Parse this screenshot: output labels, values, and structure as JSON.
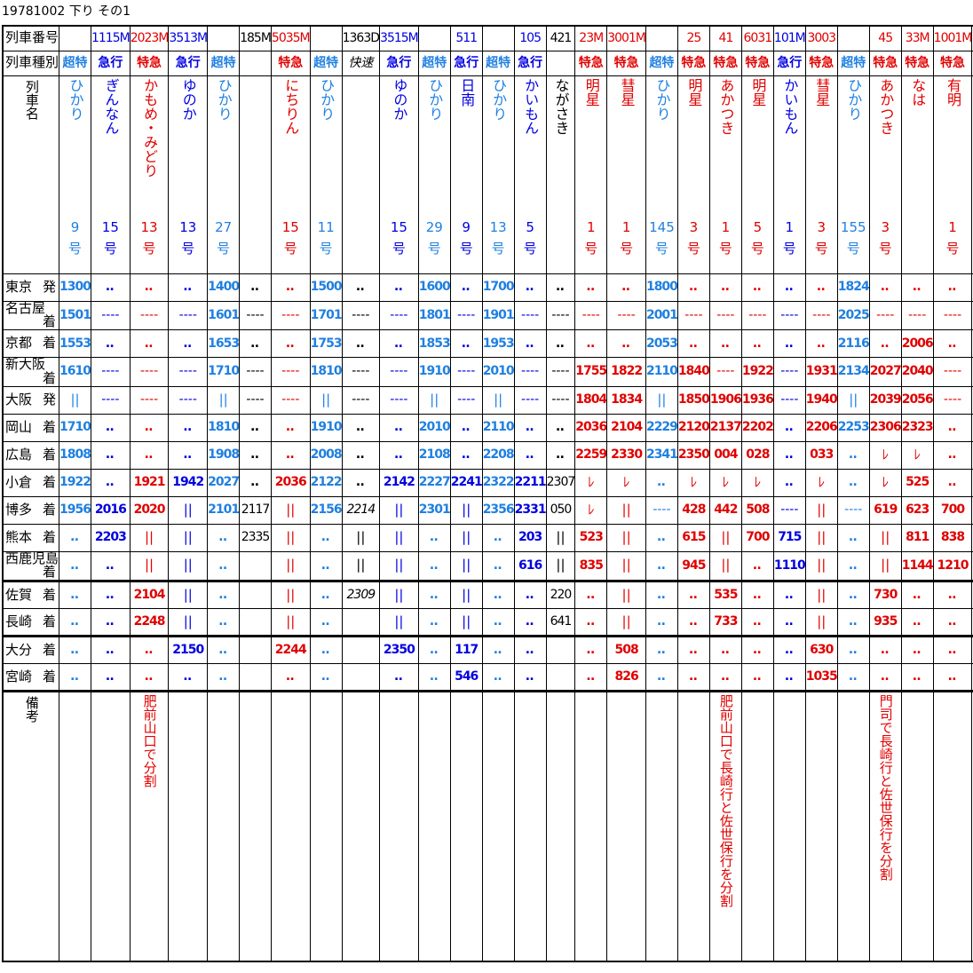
{
  "caption": "19781002 下り その1",
  "header_labels": {
    "train_number": "列車番号",
    "train_type": "列車種別",
    "train_name": "列車名",
    "remarks": "備考"
  },
  "trains": [
    {
      "num": "",
      "type": "超特",
      "name": "ひかり",
      "gou": "9",
      "c": "L"
    },
    {
      "num": "1115M",
      "type": "急行",
      "name": "ぎんなん",
      "gou": "15",
      "c": "B"
    },
    {
      "num": "2023M",
      "type": "特急",
      "name": "かもめ・みどり",
      "gou": "13",
      "c": "R"
    },
    {
      "num": "3513M",
      "type": "急行",
      "name": "ゆのか",
      "gou": "13",
      "c": "B"
    },
    {
      "num": "",
      "type": "超特",
      "name": "ひかり",
      "gou": "27",
      "c": "L"
    },
    {
      "num": "185M",
      "type": "",
      "name": "",
      "gou": "",
      "c": "K"
    },
    {
      "num": "5035M",
      "type": "特急",
      "name": "にちりん",
      "gou": "15",
      "c": "R"
    },
    {
      "num": "",
      "type": "超特",
      "name": "ひかり",
      "gou": "11",
      "c": "L"
    },
    {
      "num": "1363D",
      "type": "快速",
      "name": "",
      "gou": "",
      "c": "K"
    },
    {
      "num": "3515M",
      "type": "急行",
      "name": "ゆのか",
      "gou": "15",
      "c": "B"
    },
    {
      "num": "",
      "type": "超特",
      "name": "ひかり",
      "gou": "29",
      "c": "L"
    },
    {
      "num": "511",
      "type": "急行",
      "name": "日南",
      "gou": "9",
      "c": "B"
    },
    {
      "num": "",
      "type": "超特",
      "name": "ひかり",
      "gou": "13",
      "c": "L"
    },
    {
      "num": "105",
      "type": "急行",
      "name": "かいもん",
      "gou": "5",
      "c": "B"
    },
    {
      "num": "421",
      "type": "",
      "name": "ながさき",
      "gou": "",
      "c": "K"
    },
    {
      "num": "23M",
      "type": "特急",
      "name": "明星",
      "gou": "1",
      "c": "R"
    },
    {
      "num": "3001M",
      "type": "特急",
      "name": "彗星",
      "gou": "1",
      "c": "R"
    },
    {
      "num": "",
      "type": "超特",
      "name": "ひかり",
      "gou": "145",
      "c": "L"
    },
    {
      "num": "25",
      "type": "特急",
      "name": "明星",
      "gou": "3",
      "c": "R"
    },
    {
      "num": "41",
      "type": "特急",
      "name": "あかつき",
      "gou": "1",
      "c": "R"
    },
    {
      "num": "6031",
      "type": "特急",
      "name": "明星",
      "gou": "5",
      "c": "R"
    },
    {
      "num": "101M",
      "type": "急行",
      "name": "かいもん",
      "gou": "1",
      "c": "B"
    },
    {
      "num": "3003",
      "type": "特急",
      "name": "彗星",
      "gou": "3",
      "c": "R"
    },
    {
      "num": "",
      "type": "超特",
      "name": "ひかり",
      "gou": "155",
      "c": "L"
    },
    {
      "num": "45",
      "type": "特急",
      "name": "あかつき",
      "gou": "3",
      "c": "R"
    },
    {
      "num": "33M",
      "type": "特急",
      "name": "なは",
      "gou": "",
      "c": "R"
    },
    {
      "num": "1001M",
      "type": "特急",
      "name": "有明",
      "gou": "1",
      "c": "R"
    },
    {
      "num": "",
      "type": "",
      "name": "",
      "gou": "",
      "c": "K"
    }
  ],
  "gou_suffix": "号",
  "stations": [
    {
      "name": "東京",
      "kind": "発",
      "sep": false,
      "times": [
        "1300",
        "‥",
        "‥",
        "‥",
        "1400",
        "‥",
        "‥",
        "1500",
        "‥",
        "‥",
        "1600",
        "‥",
        "1700",
        "‥",
        "‥",
        "‥",
        "‥",
        "1800",
        "‥",
        "‥",
        "‥",
        "‥",
        "‥",
        "1824",
        "‥",
        "‥",
        "‥",
        "‥"
      ]
    },
    {
      "name": "名古屋",
      "kind": "着",
      "sep": false,
      "times": [
        "1501",
        "----",
        "----",
        "----",
        "1601",
        "----",
        "----",
        "1701",
        "----",
        "----",
        "1801",
        "----",
        "1901",
        "----",
        "----",
        "----",
        "----",
        "2001",
        "----",
        "----",
        "----",
        "----",
        "----",
        "2025",
        "----",
        "----",
        "----",
        "----"
      ]
    },
    {
      "name": "京都",
      "kind": "着",
      "sep": false,
      "times": [
        "1553",
        "‥",
        "‥",
        "‥",
        "1653",
        "‥",
        "‥",
        "1753",
        "‥",
        "‥",
        "1853",
        "‥",
        "1953",
        "‥",
        "‥",
        "‥",
        "‥",
        "2053",
        "‥",
        "‥",
        "‥",
        "‥",
        "‥",
        "2116",
        "‥",
        "2006",
        "‥",
        "‥"
      ]
    },
    {
      "name": "新大阪",
      "kind": "着",
      "sep": false,
      "times": [
        "1610",
        "----",
        "----",
        "----",
        "1710",
        "----",
        "----",
        "1810",
        "----",
        "----",
        "1910",
        "----",
        "2010",
        "----",
        "----",
        "1755",
        "1822",
        "2110",
        "1840",
        "----",
        "1922",
        "----",
        "1931",
        "2134",
        "2027",
        "2040",
        "----",
        "----"
      ]
    },
    {
      "name": "大阪",
      "kind": "発",
      "sep": false,
      "times": [
        "||",
        "----",
        "----",
        "----",
        "||",
        "----",
        "----",
        "||",
        "----",
        "----",
        "||",
        "----",
        "||",
        "----",
        "----",
        "1804",
        "1834",
        "||",
        "1850",
        "1906",
        "1936",
        "----",
        "1940",
        "||",
        "2039",
        "2056",
        "----",
        "----"
      ]
    },
    {
      "name": "岡山",
      "kind": "着",
      "sep": false,
      "times": [
        "1710",
        "‥",
        "‥",
        "‥",
        "1810",
        "‥",
        "‥",
        "1910",
        "‥",
        "‥",
        "2010",
        "‥",
        "2110",
        "‥",
        "‥",
        "2036",
        "2104",
        "2229",
        "2120",
        "2137",
        "2202",
        "‥",
        "2206",
        "2253",
        "2306",
        "2323",
        "‥",
        "‥"
      ]
    },
    {
      "name": "広島",
      "kind": "着",
      "sep": false,
      "times": [
        "1808",
        "‥",
        "‥",
        "‥",
        "1908",
        "‥",
        "‥",
        "2008",
        "‥",
        "‥",
        "2108",
        "‥",
        "2208",
        "‥",
        "‥",
        "2259",
        "2330",
        "2341",
        "2350",
        "004",
        "028",
        "‥",
        "033",
        "‥",
        "ﾚ",
        "ﾚ",
        "‥",
        "‥"
      ]
    },
    {
      "name": "小倉",
      "kind": "着",
      "sep": false,
      "times": [
        "1922",
        "‥",
        "1921",
        "1942",
        "2027",
        "‥",
        "2036",
        "2122",
        "‥",
        "2142",
        "2227",
        "2241",
        "2322",
        "2211",
        "2307",
        "ﾚ",
        "ﾚ",
        "‥",
        "ﾚ",
        "ﾚ",
        "ﾚ",
        "‥",
        "ﾚ",
        "‥",
        "ﾚ",
        "525",
        "‥",
        "‥"
      ]
    },
    {
      "name": "博多",
      "kind": "着",
      "sep": false,
      "times": [
        "1956",
        "2016",
        "2020",
        "||",
        "2101",
        "2117",
        "||",
        "2156",
        "2214",
        "||",
        "2301",
        "||",
        "2356",
        "2331",
        "050",
        "ﾚ",
        "||",
        "----",
        "428",
        "442",
        "508",
        "----",
        "||",
        "----",
        "619",
        "623",
        "700",
        "----"
      ]
    },
    {
      "name": "熊本",
      "kind": "着",
      "sep": false,
      "times": [
        "‥",
        "2203",
        "||",
        "||",
        "‥",
        "2335",
        "||",
        "‥",
        "||",
        "||",
        "‥",
        "||",
        "‥",
        "203",
        "||",
        "523",
        "||",
        "‥",
        "615",
        "||",
        "700",
        "715",
        "||",
        "‥",
        "||",
        "811",
        "838",
        "‥"
      ]
    },
    {
      "name": "西鹿児島",
      "kind": "着",
      "sep": false,
      "times": [
        "‥",
        "‥",
        "||",
        "||",
        "‥",
        "",
        "||",
        "‥",
        "||",
        "||",
        "‥",
        "||",
        "‥",
        "616",
        "||",
        "835",
        "||",
        "‥",
        "945",
        "||",
        "‥",
        "1110",
        "||",
        "‥",
        "||",
        "1144",
        "1210",
        "‥"
      ]
    },
    {
      "name": "佐賀",
      "kind": "着",
      "sep": true,
      "times": [
        "‥",
        "‥",
        "2104",
        "||",
        "‥",
        "",
        "||",
        "‥",
        "2309",
        "||",
        "‥",
        "||",
        "‥",
        "‥",
        "220",
        "‥",
        "||",
        "‥",
        "‥",
        "535",
        "‥",
        "‥",
        "||",
        "‥",
        "730",
        "‥",
        "‥",
        "‥"
      ]
    },
    {
      "name": "長崎",
      "kind": "着",
      "sep": false,
      "times": [
        "‥",
        "‥",
        "2248",
        "||",
        "‥",
        "",
        "||",
        "‥",
        "",
        "||",
        "‥",
        "||",
        "‥",
        "‥",
        "641",
        "‥",
        "||",
        "‥",
        "‥",
        "733",
        "‥",
        "‥",
        "||",
        "‥",
        "935",
        "‥",
        "‥",
        "‥"
      ]
    },
    {
      "name": "大分",
      "kind": "着",
      "sep": true,
      "times": [
        "‥",
        "‥",
        "‥",
        "2150",
        "‥",
        "",
        "2244",
        "‥",
        "",
        "2350",
        "‥",
        "117",
        "‥",
        "‥",
        "",
        "‥",
        "508",
        "‥",
        "‥",
        "‥",
        "‥",
        "‥",
        "630",
        "‥",
        "‥",
        "‥",
        "‥",
        "‥"
      ]
    },
    {
      "name": "宮崎",
      "kind": "着",
      "sep": false,
      "times": [
        "‥",
        "‥",
        "‥",
        "‥",
        "‥",
        "",
        "‥",
        "‥",
        "",
        "‥",
        "‥",
        "546",
        "‥",
        "‥",
        "",
        "‥",
        "826",
        "‥",
        "‥",
        "‥",
        "‥",
        "‥",
        "1035",
        "‥",
        "‥",
        "‥",
        "‥",
        "‥"
      ]
    }
  ],
  "remarks": [
    "",
    "",
    "肥前山口で分割",
    "",
    "",
    "",
    "",
    "",
    "",
    "",
    "",
    "",
    "",
    "",
    "",
    "",
    "",
    "",
    "",
    "肥前山口で長崎行と佐世保行を分割",
    "",
    "",
    "",
    "",
    "門司で長崎行と佐世保行を分割",
    "",
    "",
    ""
  ],
  "colors": {
    "limited_express": "#e00000",
    "express": "#0000e0",
    "super_express": "#2080e0",
    "local": "#000000"
  }
}
